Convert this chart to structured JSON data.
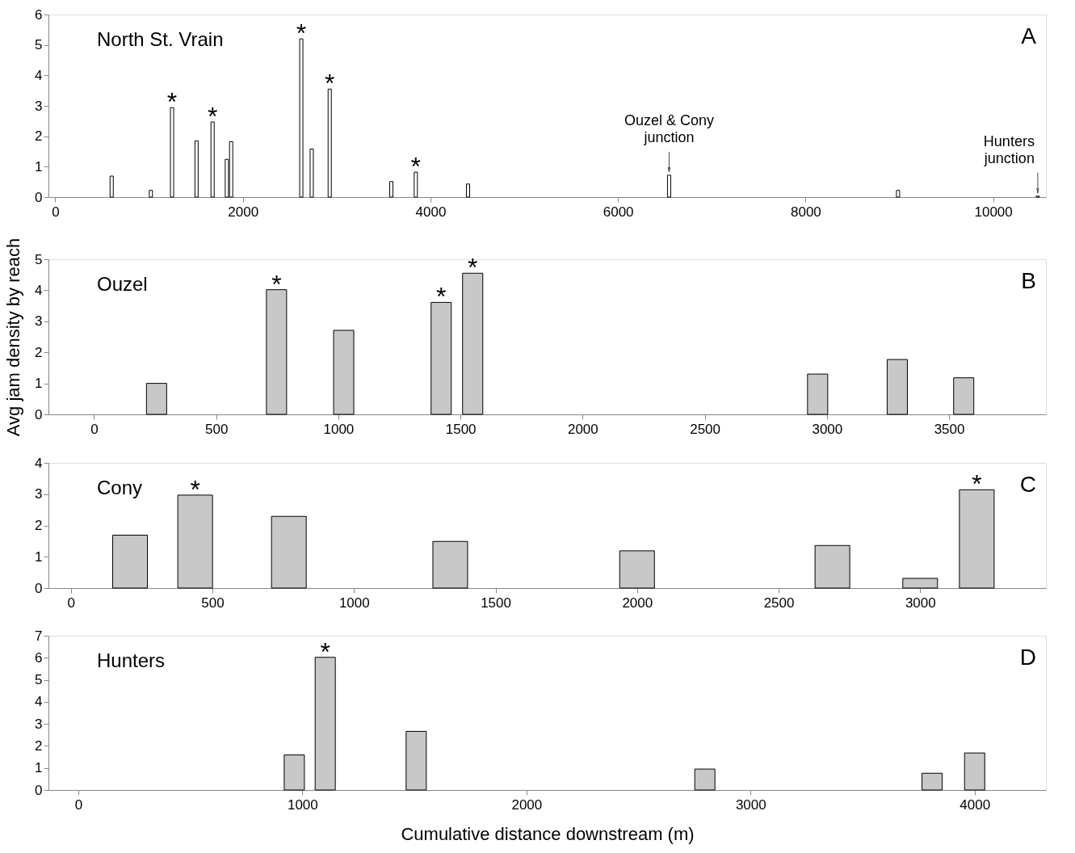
{
  "chart_data": [
    {
      "type": "bar",
      "title": "North St. Vrain",
      "xlim": [
        -30,
        10520
      ],
      "xticks": [
        0,
        2000,
        4000,
        6000,
        8000,
        10000
      ],
      "ylim": [
        0,
        6
      ],
      "yticks": [
        0,
        1,
        2,
        3,
        4,
        5,
        6
      ],
      "grid": false,
      "x": [
        601,
        1019,
        1245,
        1506,
        1677,
        1829,
        1875,
        2623,
        2734,
        2926,
        3583,
        3844,
        4401,
        6545,
        8986,
        10476
      ],
      "series": [
        {
          "color": "#ffffff",
          "values": [
            0.69,
            0.22,
            2.94,
            1.85,
            2.47,
            1.24,
            1.82,
            5.2,
            1.58,
            3.55,
            0.51,
            0.82,
            0.43,
            0.72,
            0.22,
            0.03
          ]
        }
      ],
      "annotations": [
        "A",
        {
          "text": "*",
          "x": 1245,
          "y": 2.94
        },
        {
          "text": "*",
          "x": 1677,
          "y": 2.47
        },
        {
          "text": "*",
          "x": 2623,
          "y": 5.2
        },
        {
          "text": "*",
          "x": 2926,
          "y": 3.55
        },
        {
          "text": "*",
          "x": 3844,
          "y": 0.82
        },
        {
          "text": "Ouzel & Cony\njunction",
          "x": 6545,
          "y": 0.72
        },
        {
          "text": "Hunters\njunction",
          "x": 10476,
          "y": 0.03
        }
      ]
    },
    {
      "type": "bar",
      "title": "Ouzel",
      "ylabel": "Avg jam density by reach",
      "xlim": [
        -170,
        3880
      ],
      "xticks": [
        0,
        500,
        1000,
        1500,
        2000,
        2500,
        3000,
        3500
      ],
      "ylim": [
        0,
        5
      ],
      "yticks": [
        0,
        1,
        2,
        3,
        4,
        5
      ],
      "grid": false,
      "x": [
        256,
        747,
        1022,
        1421,
        1550,
        2962,
        3288,
        3560
      ],
      "series": [
        {
          "color": "#c8c8c8",
          "values": [
            1.0,
            4.02,
            2.71,
            3.61,
            4.55,
            1.3,
            1.77,
            1.18
          ]
        }
      ],
      "annotations": [
        "B",
        {
          "text": "*",
          "x": 747,
          "y": 4.02
        },
        {
          "text": "*",
          "x": 1421,
          "y": 3.61
        },
        {
          "text": "*",
          "x": 1550,
          "y": 4.55
        }
      ]
    },
    {
      "type": "bar",
      "title": "Cony",
      "xlim": [
        -65,
        3430
      ],
      "xticks": [
        0,
        500,
        1000,
        1500,
        2000,
        2500,
        3000
      ],
      "ylim": [
        0,
        4
      ],
      "yticks": [
        0,
        1,
        2,
        3,
        4
      ],
      "grid": false,
      "x": [
        209,
        439,
        770,
        1340,
        2000,
        2690,
        3000,
        3200
      ],
      "series": [
        {
          "color": "#c8c8c8",
          "values": [
            1.69,
            2.97,
            2.29,
            1.49,
            1.19,
            1.36,
            0.31,
            3.14
          ]
        }
      ],
      "annotations": [
        "C",
        {
          "text": "*",
          "x": 439,
          "y": 2.97
        },
        {
          "text": "*",
          "x": 3200,
          "y": 3.14
        }
      ]
    },
    {
      "type": "bar",
      "title": "Hunters",
      "xlabel": "Cumulative distance downstream (m)",
      "xlim": [
        -115,
        4300
      ],
      "xticks": [
        0,
        1000,
        2000,
        3000,
        4000
      ],
      "ylim": [
        0,
        7
      ],
      "yticks": [
        0,
        1,
        2,
        3,
        4,
        5,
        6,
        7
      ],
      "grid": false,
      "x": [
        964,
        1102,
        1508,
        2796,
        3810,
        4000
      ],
      "series": [
        {
          "color": "#c8c8c8",
          "values": [
            1.59,
            6.02,
            2.66,
            0.95,
            0.76,
            1.68
          ]
        }
      ],
      "annotations": [
        "D",
        {
          "text": "*",
          "x": 1102,
          "y": 6.02
        }
      ]
    }
  ]
}
